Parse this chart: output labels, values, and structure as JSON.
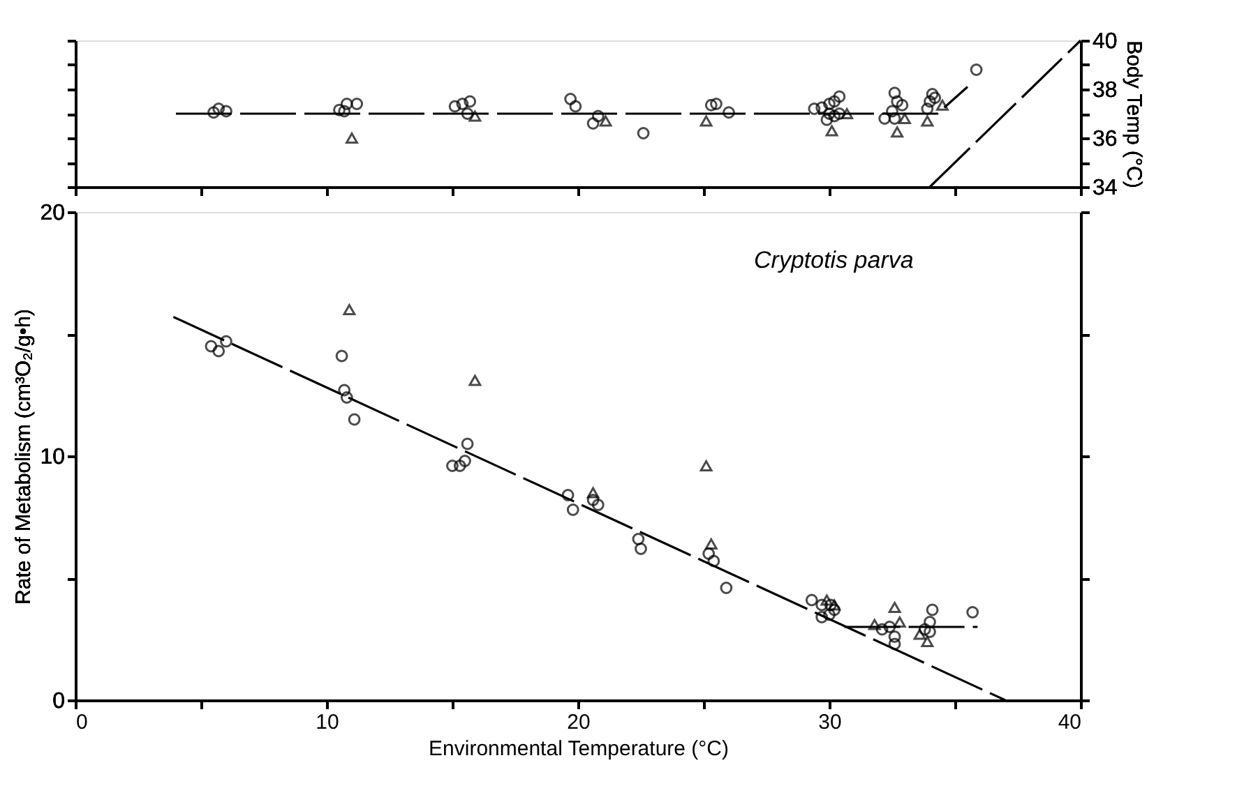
{
  "chart_data": [
    {
      "type": "scatter",
      "ylabel": "Body Temp (°C)",
      "xlim": [
        0,
        40
      ],
      "xticks": [
        0,
        {
          "value": 5,
          "label": null
        },
        {
          "value": 10,
          "label": null
        },
        {
          "value": 15,
          "label": null
        },
        {
          "value": 20,
          "label": null
        },
        {
          "value": 25,
          "label": null
        },
        {
          "value": 30,
          "label": null
        },
        {
          "value": 35,
          "label": null
        },
        {
          "value": 40,
          "label": null
        }
      ],
      "ylim": [
        34,
        40
      ],
      "yticks": [
        34,
        {
          "value": 35,
          "label": null
        },
        36,
        {
          "value": 37,
          "label": null
        },
        38,
        {
          "value": 39,
          "label": null
        },
        40
      ],
      "tick_labels": "y",
      "series": [
        {
          "marker": "circle",
          "color": "#000000",
          "x": [
            5.5,
            5.7,
            6.0,
            10.5,
            10.7,
            10.8,
            11.2,
            15.1,
            15.4,
            15.7,
            15.6,
            19.7,
            19.9,
            20.6,
            20.8,
            22.6,
            25.3,
            25.5,
            26.0,
            29.4,
            29.7,
            30.0,
            30.2,
            30.4,
            30.0,
            30.2,
            29.9,
            30.4,
            32.6,
            32.7,
            32.9,
            32.2,
            32.6,
            32.5,
            34.1,
            34.2,
            33.9,
            34.0,
            35.85
          ],
          "values": [
            37.05,
            37.2,
            37.1,
            37.15,
            37.1,
            37.4,
            37.4,
            37.3,
            37.4,
            37.5,
            37.0,
            37.6,
            37.3,
            36.6,
            36.9,
            36.2,
            37.35,
            37.4,
            37.05,
            37.2,
            37.25,
            37.4,
            37.5,
            37.7,
            37.0,
            36.9,
            36.75,
            37.0,
            37.85,
            37.5,
            37.35,
            36.8,
            36.8,
            37.1,
            37.8,
            37.65,
            37.2,
            37.5,
            38.8
          ]
        },
        {
          "marker": "triangle",
          "color": "#000000",
          "x": [
            11.0,
            15.9,
            21.1,
            25.1,
            30.1,
            30.7,
            32.7,
            33.0,
            34.5,
            33.9
          ],
          "values": [
            36.0,
            36.9,
            36.7,
            36.7,
            36.3,
            37.0,
            36.25,
            36.8,
            37.35,
            36.7
          ]
        },
        {
          "type": "line",
          "marker": "none",
          "line_style": "dashed",
          "color": "#000000",
          "x": [
            4.0,
            34.3,
            35.5
          ],
          "values": [
            37.0,
            37.0,
            38.1
          ]
        },
        {
          "type": "line",
          "marker": "none",
          "line_style": "dashed",
          "color": "#000000",
          "x": [
            34.0,
            40.0
          ],
          "values": [
            34.0,
            40.0
          ]
        }
      ]
    },
    {
      "type": "scatter",
      "xlabel": "Environmental Temperature (°C)",
      "ylabel": "Rate of Metabolism (cm³O₂/g•h)",
      "annotations": [
        "Cryptotis parva"
      ],
      "xlim": [
        0,
        40
      ],
      "xticks": [
        0,
        {
          "value": 5,
          "label": null
        },
        10,
        {
          "value": 15,
          "label": null
        },
        20,
        {
          "value": 25,
          "label": null
        },
        30,
        {
          "value": 35,
          "label": null
        },
        40
      ],
      "ylim": [
        0,
        20
      ],
      "yticks": [
        0,
        {
          "value": 5,
          "label": null
        },
        10,
        {
          "value": 15,
          "label": null
        },
        20
      ],
      "series": [
        {
          "marker": "circle",
          "color": "#000000",
          "x": [
            5.4,
            5.7,
            6.0,
            10.6,
            10.7,
            10.8,
            11.1,
            15.6,
            15.0,
            15.3,
            15.5,
            19.6,
            19.8,
            20.6,
            20.8,
            22.4,
            22.5,
            25.2,
            25.4,
            25.9,
            29.3,
            29.7,
            29.7,
            30.0,
            30.2,
            30.05,
            32.1,
            32.4,
            32.6,
            32.6,
            34.1,
            34.0,
            34.0,
            33.8,
            35.7
          ],
          "values": [
            14.5,
            14.3,
            14.7,
            14.1,
            12.7,
            12.4,
            11.5,
            10.5,
            9.6,
            9.6,
            9.8,
            8.4,
            7.8,
            8.2,
            8.0,
            6.6,
            6.2,
            6.0,
            5.7,
            4.6,
            4.1,
            3.9,
            3.4,
            3.5,
            3.7,
            3.9,
            2.9,
            3.0,
            2.6,
            2.3,
            3.7,
            3.2,
            2.8,
            2.9,
            3.6
          ]
        },
        {
          "marker": "triangle",
          "color": "#000000",
          "x": [
            10.9,
            15.9,
            20.6,
            25.1,
            25.3,
            29.9,
            30.2,
            32.6,
            31.8,
            32.8,
            33.6,
            33.9
          ],
          "values": [
            16.0,
            13.1,
            8.5,
            9.6,
            6.4,
            4.1,
            3.9,
            3.8,
            3.1,
            3.2,
            2.7,
            2.4
          ]
        },
        {
          "type": "line",
          "marker": "none",
          "line_style": "dashed",
          "color": "#000000",
          "x": [
            3.9,
            37.0
          ],
          "values": [
            15.7,
            0.0
          ]
        },
        {
          "type": "line",
          "marker": "none",
          "line_style": "dashed",
          "color": "#000000",
          "x": [
            30.6,
            35.9
          ],
          "values": [
            3.0,
            3.0
          ]
        }
      ]
    }
  ]
}
